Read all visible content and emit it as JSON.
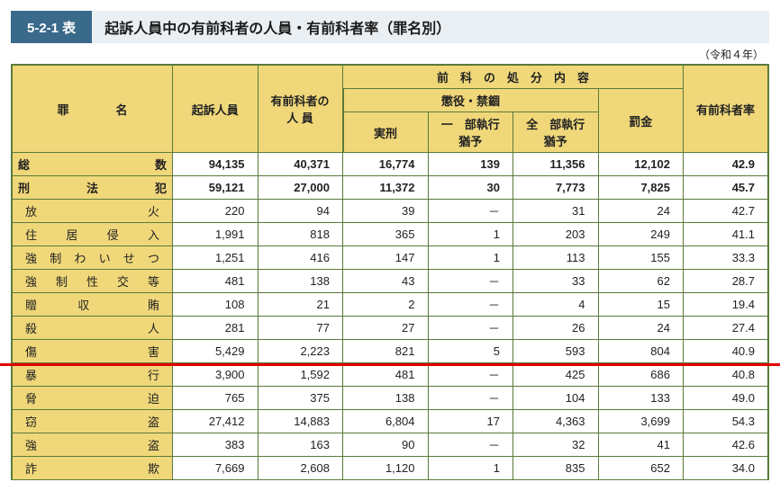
{
  "header": {
    "badge": "5-2-1 表",
    "title": "起訴人員中の有前科者の人員・有前科者率（罪名別）",
    "period": "（令和４年）"
  },
  "columns": {
    "crime": "罪　　　　名",
    "indicted": "起訴人員",
    "withPrior": "有前科者の 人 員",
    "dispositionGroup": "前　科　の　処　分　内　容",
    "imprisonGroup": "懲役・禁錮",
    "jail": "実刑",
    "partialSusp": "一　部執行猶予",
    "fullSusp": "全　部執行猶予",
    "fine": "罰金",
    "rate": "有前科者率"
  },
  "rows": [
    {
      "cls": "total",
      "label": "総　　　　　　　　数",
      "c": [
        "94,135",
        "40,371",
        "16,774",
        "139",
        "11,356",
        "12,102",
        "42.9"
      ]
    },
    {
      "cls": "section",
      "label": "刑　　　法　　　犯",
      "c": [
        "59,121",
        "27,000",
        "11,372",
        "30",
        "7,773",
        "7,825",
        "45.7"
      ]
    },
    {
      "cls": "sub",
      "label": "放　　　　　　　火",
      "c": [
        "220",
        "94",
        "39",
        "－",
        "31",
        "24",
        "42.7"
      ]
    },
    {
      "cls": "sub",
      "label": "住　 居　 侵　 入",
      "c": [
        "1,991",
        "818",
        "365",
        "1",
        "203",
        "249",
        "41.1"
      ]
    },
    {
      "cls": "sub",
      "label": "強 制 わ い せ つ",
      "c": [
        "1,251",
        "416",
        "147",
        "1",
        "113",
        "155",
        "33.3"
      ]
    },
    {
      "cls": "sub",
      "label": "強 制 性 交 等",
      "c": [
        "481",
        "138",
        "43",
        "－",
        "33",
        "62",
        "28.7"
      ]
    },
    {
      "cls": "sub",
      "label": "贈　　収　　　賄",
      "c": [
        "108",
        "21",
        "2",
        "－",
        "4",
        "15",
        "19.4"
      ]
    },
    {
      "cls": "sub",
      "label": "殺　　　　　　　人",
      "c": [
        "281",
        "77",
        "27",
        "－",
        "26",
        "24",
        "27.4"
      ]
    },
    {
      "cls": "sub",
      "label": "傷　　　　　　　害",
      "c": [
        "5,429",
        "2,223",
        "821",
        "5",
        "593",
        "804",
        "40.9"
      ]
    },
    {
      "cls": "sub",
      "label": "暴　　　　　　　行",
      "c": [
        "3,900",
        "1,592",
        "481",
        "－",
        "425",
        "686",
        "40.8"
      ]
    },
    {
      "cls": "sub",
      "label": "脅　　　　　　　迫",
      "c": [
        "765",
        "375",
        "138",
        "－",
        "104",
        "133",
        "49.0"
      ]
    },
    {
      "cls": "sub",
      "label": "窃　　　　　　　盗",
      "c": [
        "27,412",
        "14,883",
        "6,804",
        "17",
        "4,363",
        "3,699",
        "54.3"
      ]
    },
    {
      "cls": "sub",
      "label": "強　　　　　　　盗",
      "c": [
        "383",
        "163",
        "90",
        "－",
        "32",
        "41",
        "42.6"
      ]
    },
    {
      "cls": "sub",
      "label": "詐　　　　　　　欺",
      "c": [
        "7,669",
        "2,608",
        "1,120",
        "1",
        "835",
        "652",
        "34.0"
      ]
    }
  ],
  "style": {
    "headerBg": "#f0d87a",
    "border": "#5a7a3a",
    "badgeBg": "#3a6a8a",
    "hlColor": "#e00000",
    "hlAfterRowIndex": 8
  }
}
